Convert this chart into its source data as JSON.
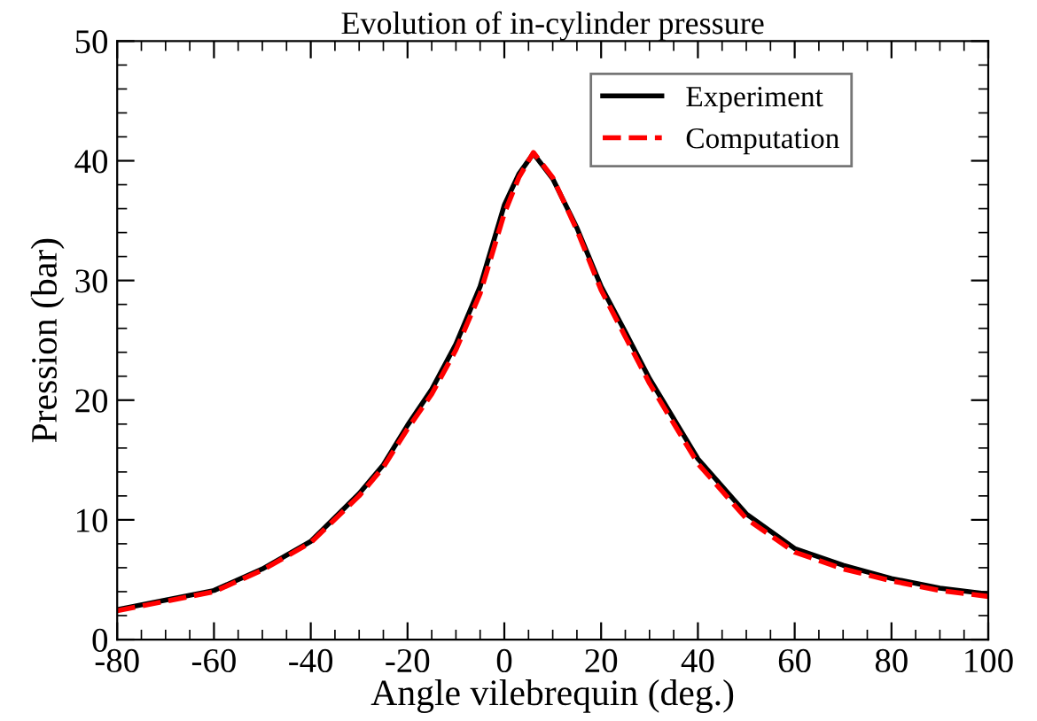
{
  "chart_data": {
    "type": "line",
    "title": "Evolution of in-cylinder pressure",
    "xlabel": "Angle vilebrequin (deg.)",
    "ylabel": "Pression (bar)",
    "xlim": [
      -80,
      100
    ],
    "ylim": [
      0,
      50
    ],
    "xticks": [
      -80,
      -60,
      -40,
      -20,
      0,
      20,
      40,
      60,
      80,
      100
    ],
    "yticks": [
      0,
      10,
      20,
      30,
      40,
      50
    ],
    "grid": false,
    "legend": "top right",
    "series": [
      {
        "name": "Experiment",
        "color": "#000000",
        "line_style": "solid",
        "x": [
          -80,
          -70,
          -60,
          -50,
          -40,
          -30,
          -25,
          -20,
          -15,
          -10,
          -5,
          0,
          3,
          6,
          10,
          15,
          20,
          25,
          30,
          40,
          50,
          60,
          70,
          80,
          90,
          100
        ],
        "values": [
          2.5,
          3.3,
          4.1,
          5.9,
          8.2,
          12.2,
          14.6,
          17.9,
          20.9,
          24.7,
          29.5,
          36.3,
          38.9,
          40.6,
          38.5,
          34.4,
          29.5,
          25.7,
          21.8,
          15.1,
          10.5,
          7.6,
          6.2,
          5.1,
          4.3,
          3.8
        ]
      },
      {
        "name": "Computation",
        "color": "#ff0000",
        "line_style": "dashed",
        "x": [
          -80,
          -70,
          -60,
          -50,
          -40,
          -30,
          -25,
          -20,
          -15,
          -10,
          -5,
          0,
          3,
          6,
          10,
          15,
          20,
          25,
          30,
          40,
          50,
          60,
          70,
          80,
          90,
          100
        ],
        "values": [
          2.4,
          3.2,
          4.0,
          5.8,
          8.1,
          12.0,
          14.4,
          17.6,
          20.5,
          24.2,
          28.9,
          35.6,
          38.6,
          40.7,
          38.6,
          34.2,
          29.2,
          25.3,
          21.4,
          14.7,
          10.1,
          7.3,
          5.9,
          4.9,
          4.1,
          3.6
        ]
      }
    ]
  }
}
